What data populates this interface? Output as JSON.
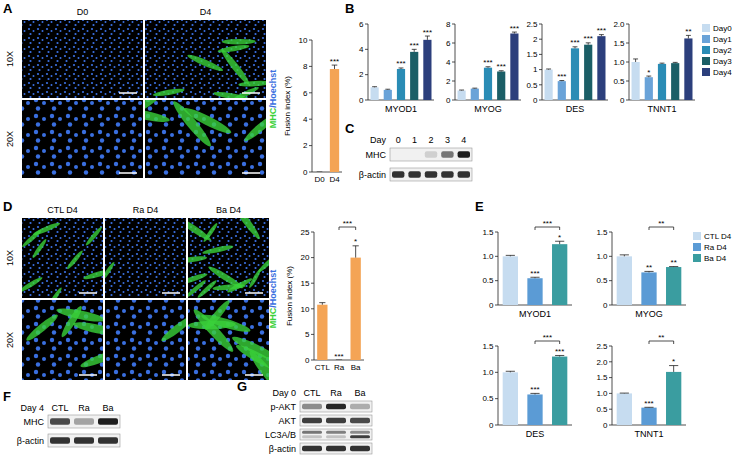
{
  "panel_letters": [
    "A",
    "B",
    "C",
    "D",
    "E",
    "F",
    "G"
  ],
  "stain": [
    {
      "text": "MHC",
      "color": "#3ad13a"
    },
    {
      "text": "/Hoechst",
      "color": "#3a6fe0"
    }
  ],
  "micrographs": {
    "A": {
      "columns": [
        "D0",
        "D4"
      ],
      "rows": [
        "10X",
        "20X"
      ],
      "mhc_signal": [
        0,
        0.6
      ]
    },
    "D": {
      "columns": [
        "CTL D4",
        "Ra D4",
        "Ba D4"
      ],
      "rows": [
        "10X",
        "20X"
      ],
      "mhc_signal": [
        0.6,
        0.08,
        0.9
      ]
    }
  },
  "chart_data": [
    {
      "type": "bar",
      "ylabel": "Fusion index (%)",
      "categories": [
        "D0",
        "D4"
      ],
      "values": [
        0,
        7.8
      ],
      "errors": [
        0,
        0.3
      ],
      "annotations": [
        null,
        "***"
      ],
      "color": "#f4a455",
      "ylim": [
        0,
        10
      ],
      "yticks": [
        0,
        2,
        4,
        6,
        8,
        10
      ],
      "tick_labels": true
    },
    {
      "type": "bar",
      "xlabel": "MYOD1",
      "categories": [
        "Day0",
        "Day1",
        "Day2",
        "Day3",
        "Day4"
      ],
      "values": [
        1.0,
        0.8,
        2.45,
        3.8,
        4.75
      ],
      "errors": [
        0.05,
        0.05,
        0.08,
        0.2,
        0.3
      ],
      "annotations": [
        null,
        null,
        "***",
        "***",
        "***"
      ],
      "colors": [
        "#c6dcf0",
        "#6aa3d8",
        "#2a8cb5",
        "#1b5e66",
        "#2c3f7c"
      ],
      "ylim": [
        0,
        6
      ],
      "yticks": [
        0,
        2,
        4,
        6
      ],
      "tick_labels": "y"
    },
    {
      "type": "bar",
      "xlabel": "MYOG",
      "categories": [
        "Day0",
        "Day1",
        "Day2",
        "Day3",
        "Day4"
      ],
      "values": [
        1.0,
        1.2,
        3.4,
        3.0,
        7.0
      ],
      "errors": [
        0.05,
        0.05,
        0.1,
        0.08,
        0.15
      ],
      "annotations": [
        null,
        null,
        "***",
        "***",
        "***"
      ],
      "colors": [
        "#c6dcf0",
        "#6aa3d8",
        "#2a8cb5",
        "#1b5e66",
        "#2c3f7c"
      ],
      "ylim": [
        0,
        8
      ],
      "yticks": [
        0,
        2,
        4,
        6,
        8
      ],
      "tick_labels": "y"
    },
    {
      "type": "bar",
      "xlabel": "DES",
      "categories": [
        "Day0",
        "Day1",
        "Day2",
        "Day3",
        "Day4"
      ],
      "values": [
        1.0,
        0.62,
        1.7,
        1.82,
        2.1
      ],
      "errors": [
        0.02,
        0.02,
        0.05,
        0.06,
        0.05
      ],
      "annotations": [
        null,
        "***",
        "***",
        "***",
        "***"
      ],
      "colors": [
        "#c6dcf0",
        "#6aa3d8",
        "#2a8cb5",
        "#1b5e66",
        "#2c3f7c"
      ],
      "ylim": [
        0,
        2.5
      ],
      "yticks": [
        0,
        0.5,
        1,
        1.5,
        2,
        2.5
      ],
      "tick_labels": "y"
    },
    {
      "type": "bar",
      "xlabel": "TNNT1",
      "categories": [
        "Day0",
        "Day1",
        "Day2",
        "Day3",
        "Day4"
      ],
      "values": [
        1.0,
        0.6,
        0.95,
        0.97,
        1.62
      ],
      "errors": [
        0.08,
        0.03,
        0.02,
        0.02,
        0.08
      ],
      "annotations": [
        null,
        "*",
        null,
        null,
        "**"
      ],
      "colors": [
        "#c6dcf0",
        "#6aa3d8",
        "#2a8cb5",
        "#1b5e66",
        "#2c3f7c"
      ],
      "ylim": [
        0,
        2
      ],
      "yticks": [
        0,
        0.5,
        {
          "value": 1,
          "label": "1.0"
        },
        1.5,
        {
          "value": 2,
          "label": "2.0"
        }
      ],
      "tick_labels": "y",
      "legend": "right"
    },
    {
      "type": "bar",
      "ylabel": "Fusion index (%)",
      "categories": [
        "CTL",
        "Ra",
        "Ba"
      ],
      "values": [
        10.8,
        0,
        20
      ],
      "errors": [
        0.4,
        0,
        2.3
      ],
      "annotations": [
        null,
        "***",
        "*"
      ],
      "comparisons": [
        {
          "pair": [
            "Ra",
            "Ba"
          ],
          "label": "***"
        }
      ],
      "color": "#f4a455",
      "ylim": [
        0,
        25
      ],
      "yticks": [
        0,
        5,
        10,
        15,
        20,
        25
      ],
      "tick_labels": true
    },
    {
      "type": "bar",
      "xlabel": "MYOD1",
      "categories": [
        "CTL D4",
        "Ra D4",
        "Ba D4"
      ],
      "values": [
        1.0,
        0.55,
        1.25
      ],
      "errors": [
        0.02,
        0.02,
        0.06
      ],
      "annotations": [
        null,
        "***",
        "*"
      ],
      "comparisons": [
        {
          "pair": [
            "Ra D4",
            "Ba D4"
          ],
          "label": "***"
        }
      ],
      "colors": [
        "#c6dcf0",
        "#5b9bd5",
        "#3a9da0"
      ],
      "ylim": [
        0,
        1.5
      ],
      "yticks": [
        0,
        0.5,
        {
          "value": 1,
          "label": "1.0"
        },
        1.5
      ],
      "tick_labels": "y"
    },
    {
      "type": "bar",
      "xlabel": "MYOG",
      "categories": [
        "CTL D4",
        "Ra D4",
        "Ba D4"
      ],
      "values": [
        1.0,
        0.67,
        0.78
      ],
      "errors": [
        0.03,
        0.02,
        0.01
      ],
      "annotations": [
        null,
        "**",
        "**"
      ],
      "comparisons": [
        {
          "pair": [
            "Ra D4",
            "Ba D4"
          ],
          "label": "**"
        }
      ],
      "colors": [
        "#c6dcf0",
        "#5b9bd5",
        "#3a9da0"
      ],
      "ylim": [
        0,
        1.5
      ],
      "yticks": [
        0,
        0.5,
        {
          "value": 1,
          "label": "1.0"
        },
        1.5
      ],
      "tick_labels": "y",
      "legend": "right"
    },
    {
      "type": "bar",
      "xlabel": "DES",
      "categories": [
        "CTL D4",
        "Ra D4",
        "Ba D4"
      ],
      "values": [
        1.0,
        0.58,
        1.3
      ],
      "errors": [
        0.02,
        0.02,
        0.02
      ],
      "annotations": [
        null,
        "***",
        "***"
      ],
      "comparisons": [
        {
          "pair": [
            "Ra D4",
            "Ba D4"
          ],
          "label": "***"
        }
      ],
      "colors": [
        "#c6dcf0",
        "#5b9bd5",
        "#3a9da0"
      ],
      "ylim": [
        0,
        1.5
      ],
      "yticks": [
        0,
        0.5,
        {
          "value": 1,
          "label": "1.0"
        },
        1.5
      ],
      "tick_labels": "y"
    },
    {
      "type": "bar",
      "xlabel": "TNNT1",
      "categories": [
        "CTL D4",
        "Ra D4",
        "Ba D4"
      ],
      "values": [
        1.0,
        0.55,
        1.68
      ],
      "errors": [
        0.01,
        0.01,
        0.2
      ],
      "annotations": [
        null,
        "***",
        "*"
      ],
      "comparisons": [
        {
          "pair": [
            "Ra D4",
            "Ba D4"
          ],
          "label": "**"
        }
      ],
      "colors": [
        "#c6dcf0",
        "#5b9bd5",
        "#3a9da0"
      ],
      "ylim": [
        0,
        2.5
      ],
      "yticks": [
        0,
        0.5,
        {
          "value": 1,
          "label": "1.0"
        },
        1.5,
        {
          "value": 2,
          "label": "2.0"
        },
        2.5
      ],
      "tick_labels": "y"
    }
  ],
  "blots": {
    "C": {
      "header": "Day",
      "lanes": [
        "0",
        "1",
        "2",
        "3",
        "4"
      ],
      "rows": [
        {
          "label": "MHC",
          "bands": [
            0,
            0,
            0.15,
            0.55,
            0.95
          ]
        },
        {
          "label": "β-actin",
          "bands": [
            0.85,
            0.85,
            0.85,
            0.85,
            0.85
          ]
        }
      ]
    },
    "F": {
      "header": "Day 4",
      "lanes": [
        "CTL",
        "Ra",
        "Ba"
      ],
      "rows": [
        {
          "label": "MHC",
          "bands": [
            0.75,
            0.35,
            0.95
          ]
        },
        {
          "label": "β-actin",
          "bands": [
            0.85,
            0.85,
            0.85
          ]
        }
      ]
    },
    "G": {
      "header": "Day 0",
      "lanes": [
        "CTL",
        "Ra",
        "Ba"
      ],
      "rows": [
        {
          "label": "p-AKT",
          "bands": [
            0.45,
            0.9,
            0.3
          ]
        },
        {
          "label": "AKT",
          "bands": [
            0.8,
            0.8,
            0.75
          ]
        },
        {
          "label": "LC3A/B",
          "bands": [
            [
              0.55,
              0.2
            ],
            [
              0.5,
              0.2
            ],
            [
              0.45,
              0.8
            ]
          ]
        },
        {
          "label": "β-actin",
          "bands": [
            0.85,
            0.85,
            0.85
          ]
        }
      ]
    }
  }
}
